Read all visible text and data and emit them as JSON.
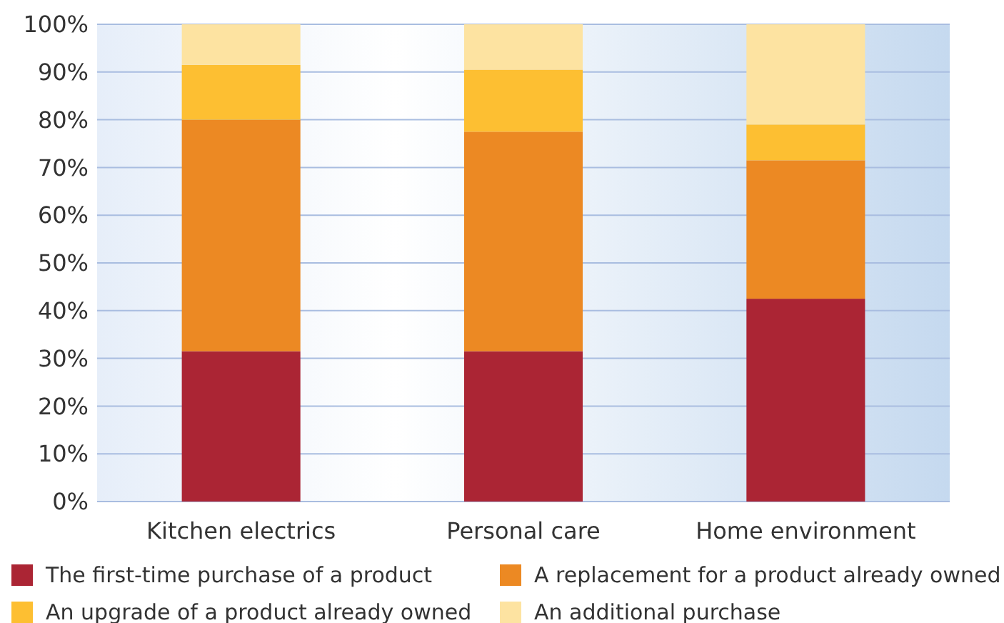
{
  "chart_data": {
    "type": "bar",
    "stacked": true,
    "categories": [
      "Kitchen electrics",
      "Personal care",
      "Home environment"
    ],
    "series": [
      {
        "name": "The first-time purchase of a product",
        "color": "#ab2534",
        "values": [
          31.5,
          31.5,
          42.5
        ]
      },
      {
        "name": "A replacement for a product already owned",
        "color": "#ec8923",
        "values": [
          48.5,
          46,
          29
        ]
      },
      {
        "name": "An upgrade of a product already owned",
        "color": "#fdbf32",
        "values": [
          11.5,
          13,
          7.5
        ]
      },
      {
        "name": "An additional purchase",
        "color": "#fde3a1",
        "values": [
          8.5,
          9.5,
          21
        ]
      }
    ],
    "ylim": [
      0,
      100
    ],
    "yticks": [
      {
        "value": 0,
        "label": "0%"
      },
      {
        "value": 10,
        "label": "10%"
      },
      {
        "value": 20,
        "label": "20%"
      },
      {
        "value": 30,
        "label": "30%"
      },
      {
        "value": 40,
        "label": "40%"
      },
      {
        "value": 50,
        "label": "50%"
      },
      {
        "value": 60,
        "label": "60%"
      },
      {
        "value": 70,
        "label": "70%"
      },
      {
        "value": 80,
        "label": "80%"
      },
      {
        "value": 90,
        "label": "90%"
      },
      {
        "value": 100,
        "label": "100%"
      }
    ],
    "grid": "y",
    "legend": "bottom"
  }
}
